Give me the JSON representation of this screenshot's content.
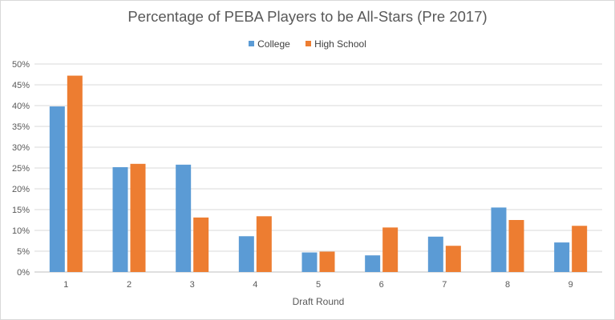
{
  "chart_data": {
    "type": "bar",
    "title": "Percentage of PEBA Players to be All-Stars (Pre 2017)",
    "xlabel": "Draft Round",
    "ylabel": "",
    "categories": [
      "1",
      "2",
      "3",
      "4",
      "5",
      "6",
      "7",
      "8",
      "9"
    ],
    "series": [
      {
        "name": "College",
        "color": "#5b9bd5",
        "values": [
          0.398,
          0.252,
          0.258,
          0.086,
          0.047,
          0.04,
          0.085,
          0.155,
          0.071
        ]
      },
      {
        "name": "High School",
        "color": "#ed7d31",
        "values": [
          0.472,
          0.26,
          0.131,
          0.134,
          0.049,
          0.107,
          0.063,
          0.125,
          0.111
        ]
      }
    ],
    "ylim": [
      0,
      0.5
    ],
    "yticks": [
      "0%",
      "5%",
      "10%",
      "15%",
      "20%",
      "25%",
      "30%",
      "35%",
      "40%",
      "45%",
      "50%"
    ],
    "grid": true,
    "legend_position": "top"
  }
}
